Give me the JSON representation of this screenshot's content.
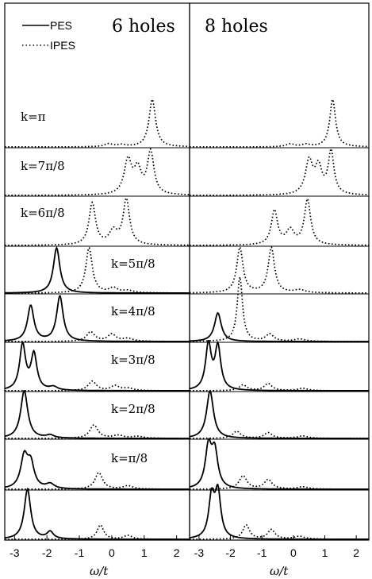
{
  "panels": [
    {
      "title": "6 holes"
    },
    {
      "title": "8 holes"
    }
  ],
  "legend": {
    "entries": [
      {
        "label": "PES",
        "style": "solid"
      },
      {
        "label": "IPES",
        "style": "dotted"
      }
    ]
  },
  "row_labels": [
    "k=π",
    "k=7π/8",
    "k=6π/8",
    "k=5π/8",
    "k=4π/8",
    "k=3π/8",
    "k=2π/8",
    "k=π/8",
    ""
  ],
  "chart_data": [
    {
      "type": "line",
      "title": "6 holes",
      "xlabel": "ω/t",
      "ylabel": "",
      "xlim": [
        -3.3,
        2.4
      ],
      "xticks": [
        -3,
        -2,
        -1,
        0,
        1,
        2
      ],
      "xtick_labels": [
        "-3",
        "-2",
        "-1",
        "0",
        "1",
        "2"
      ],
      "series": [
        {
          "name": "PES",
          "style": "solid"
        },
        {
          "name": "IPES",
          "style": "dotted"
        }
      ],
      "rows": [
        {
          "k": "k=π",
          "PES": [],
          "IPES": [
            [
              1.25,
              1.0,
              0.12
            ],
            [
              -0.1,
              0.06,
              0.15
            ],
            [
              0.3,
              0.04,
              0.15
            ]
          ]
        },
        {
          "k": "k=7π/8",
          "PES": [],
          "IPES": [
            [
              1.2,
              0.9,
              0.12
            ],
            [
              0.5,
              0.72,
              0.14
            ],
            [
              0.8,
              0.5,
              0.13
            ]
          ]
        },
        {
          "k": "k=6π/8",
          "PES": [],
          "IPES": [
            [
              -0.6,
              0.88,
              0.12
            ],
            [
              0.45,
              0.95,
              0.12
            ],
            [
              0.05,
              0.28,
              0.15
            ]
          ]
        },
        {
          "k": "k=5π/8",
          "PES": [
            [
              -1.7,
              0.95,
              0.12
            ]
          ],
          "IPES": [
            [
              -0.7,
              0.95,
              0.12
            ],
            [
              0.05,
              0.1,
              0.15
            ],
            [
              0.5,
              0.05,
              0.2
            ]
          ]
        },
        {
          "k": "k=4π/8",
          "PES": [
            [
              -2.5,
              0.75,
              0.12
            ],
            [
              -1.6,
              0.95,
              0.12
            ]
          ],
          "IPES": [
            [
              -0.65,
              0.2,
              0.15
            ],
            [
              0.0,
              0.15,
              0.15
            ],
            [
              0.5,
              0.06,
              0.2
            ]
          ]
        },
        {
          "k": "k=3π/8",
          "PES": [
            [
              -2.75,
              0.95,
              0.11
            ],
            [
              -2.4,
              0.75,
              0.11
            ],
            [
              -1.8,
              0.07,
              0.15
            ]
          ],
          "IPES": [
            [
              -0.6,
              0.2,
              0.15
            ],
            [
              0.1,
              0.1,
              0.15
            ],
            [
              0.5,
              0.05,
              0.2
            ]
          ]
        },
        {
          "k": "k=2π/8",
          "PES": [
            [
              -2.7,
              1.0,
              0.13
            ],
            [
              -1.9,
              0.06,
              0.15
            ]
          ],
          "IPES": [
            [
              -0.55,
              0.28,
              0.15
            ],
            [
              0.2,
              0.06,
              0.2
            ],
            [
              0.8,
              0.04,
              0.2
            ]
          ]
        },
        {
          "k": "k=π/8",
          "PES": [
            [
              -2.7,
              0.65,
              0.13
            ],
            [
              -2.5,
              0.5,
              0.13
            ],
            [
              -1.9,
              0.1,
              0.15
            ]
          ],
          "IPES": [
            [
              -0.4,
              0.35,
              0.14
            ],
            [
              0.5,
              0.07,
              0.18
            ]
          ]
        },
        {
          "k": "",
          "PES": [
            [
              -2.6,
              1.05,
              0.12
            ],
            [
              -1.9,
              0.15,
              0.12
            ]
          ],
          "IPES": [
            [
              -0.35,
              0.3,
              0.12
            ],
            [
              0.5,
              0.08,
              0.15
            ]
          ]
        }
      ]
    },
    {
      "type": "line",
      "title": "8 holes",
      "xlabel": "ω/t",
      "ylabel": "",
      "xlim": [
        -3.3,
        2.4
      ],
      "xticks": [
        -3,
        -2,
        -1,
        0,
        1,
        2
      ],
      "xtick_labels": [
        "-3",
        "-2",
        "-1",
        "0",
        "1",
        "2"
      ],
      "series": [
        {
          "name": "PES",
          "style": "solid"
        },
        {
          "name": "IPES",
          "style": "dotted"
        }
      ],
      "rows": [
        {
          "k": "k=π",
          "PES": [],
          "IPES": [
            [
              1.25,
              1.0,
              0.11
            ],
            [
              -0.1,
              0.06,
              0.15
            ],
            [
              0.4,
              0.05,
              0.15
            ]
          ]
        },
        {
          "k": "k=7π/8",
          "PES": [],
          "IPES": [
            [
              1.2,
              0.9,
              0.11
            ],
            [
              0.5,
              0.7,
              0.14
            ],
            [
              0.8,
              0.55,
              0.13
            ]
          ]
        },
        {
          "k": "k=6π/8",
          "PES": [],
          "IPES": [
            [
              -0.6,
              0.72,
              0.12
            ],
            [
              0.45,
              0.95,
              0.12
            ],
            [
              -0.1,
              0.3,
              0.15
            ]
          ]
        },
        {
          "k": "k=5π/8",
          "PES": [],
          "IPES": [
            [
              -1.7,
              0.95,
              0.12
            ],
            [
              -0.7,
              0.95,
              0.12
            ],
            [
              0.2,
              0.06,
              0.2
            ]
          ]
        },
        {
          "k": "k=4π/8",
          "PES": [
            [
              -2.4,
              0.6,
              0.13
            ]
          ],
          "IPES": [
            [
              -1.7,
              1.35,
              0.1
            ],
            [
              -0.75,
              0.15,
              0.15
            ],
            [
              0.2,
              0.05,
              0.2
            ]
          ]
        },
        {
          "k": "k=3π/8",
          "PES": [
            [
              -2.7,
              0.95,
              0.11
            ],
            [
              -2.4,
              0.9,
              0.11
            ]
          ],
          "IPES": [
            [
              -1.6,
              0.12,
              0.15
            ],
            [
              -0.8,
              0.15,
              0.15
            ],
            [
              0.3,
              0.05,
              0.2
            ]
          ]
        },
        {
          "k": "k=2π/8",
          "PES": [
            [
              -2.65,
              1.0,
              0.13
            ]
          ],
          "IPES": [
            [
              -1.8,
              0.15,
              0.15
            ],
            [
              -0.8,
              0.12,
              0.15
            ],
            [
              0.3,
              0.05,
              0.2
            ]
          ]
        },
        {
          "k": "k=π/8",
          "PES": [
            [
              -2.7,
              0.85,
              0.12
            ],
            [
              -2.5,
              0.75,
              0.12
            ]
          ],
          "IPES": [
            [
              -1.6,
              0.28,
              0.15
            ],
            [
              -0.8,
              0.2,
              0.15
            ],
            [
              0.3,
              0.05,
              0.2
            ]
          ]
        },
        {
          "k": "",
          "PES": [
            [
              -2.6,
              0.85,
              0.11
            ],
            [
              -2.4,
              0.95,
              0.11
            ]
          ],
          "IPES": [
            [
              -1.5,
              0.3,
              0.13
            ],
            [
              -0.7,
              0.2,
              0.14
            ],
            [
              0.2,
              0.06,
              0.2
            ]
          ]
        }
      ]
    }
  ]
}
